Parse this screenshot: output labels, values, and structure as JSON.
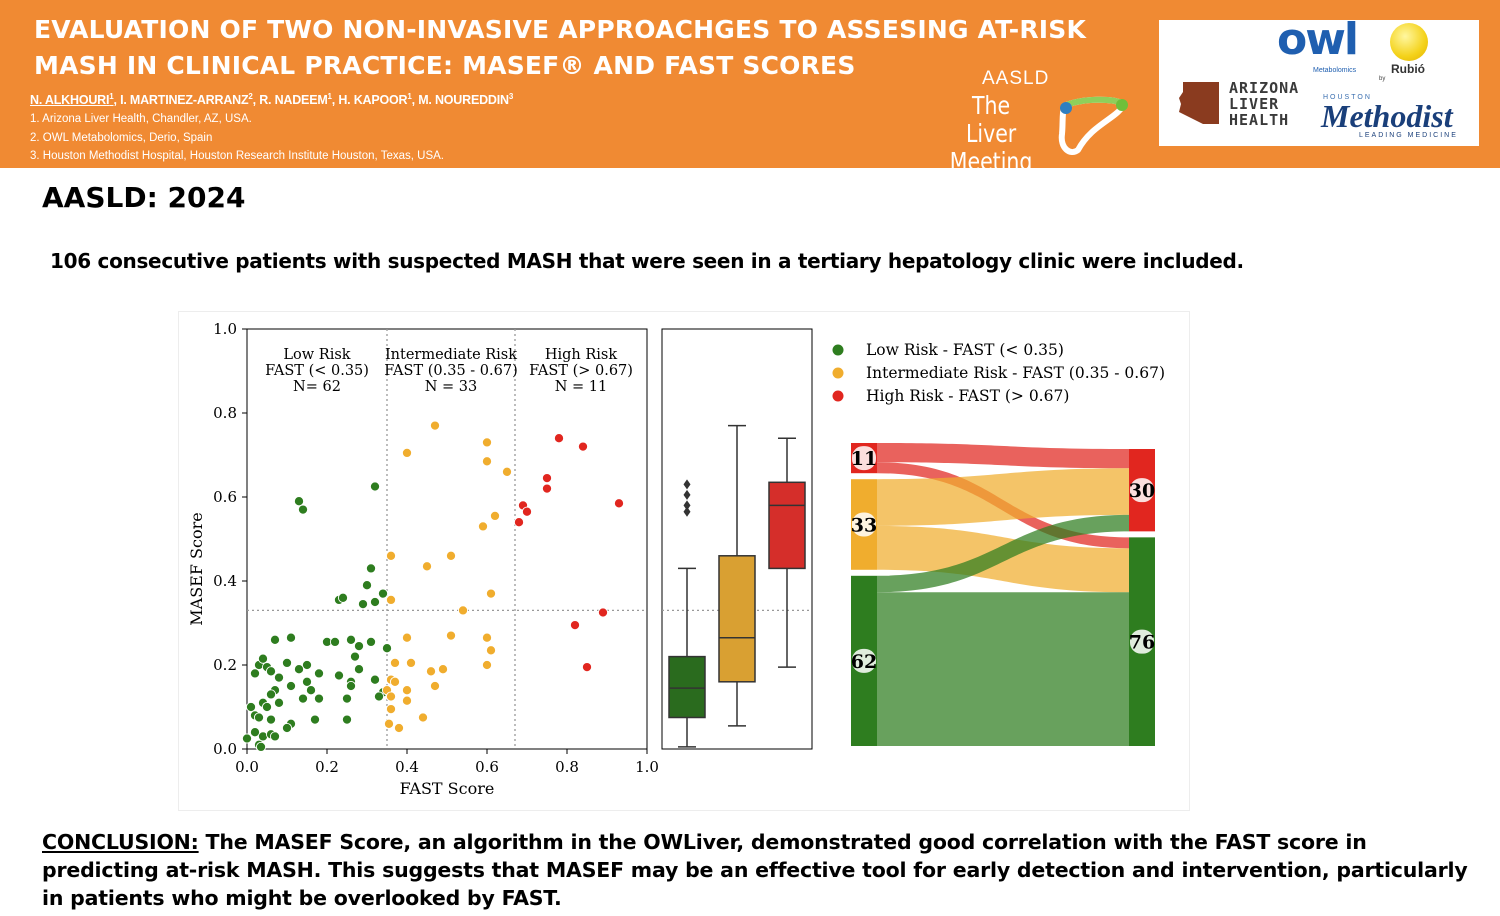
{
  "header": {
    "title": "EVALUATION OF TWO NON-INVASIVE APPROACHGES TO ASSESING AT-RISK MASH IN CLINICAL PRACTICE: MASEF® AND FAST SCORES",
    "authors": [
      {
        "name": "N. ALKHOURI",
        "sup": "1"
      },
      {
        "name": "I. MARTINEZ-ARRANZ",
        "sup": "2"
      },
      {
        "name": "R. NADEEM",
        "sup": "1"
      },
      {
        "name": "H. KAPOOR",
        "sup": "1"
      },
      {
        "name": "M. NOUREDDIN",
        "sup": "3"
      }
    ],
    "affiliations": [
      "1. Arizona Liver Health, Chandler, AZ, USA.",
      "2. OWL Metabolomics, Derio, Spain",
      "3. Houston Methodist Hospital, Houston Research Institute Houston, Texas, USA."
    ],
    "meeting": {
      "org": "AASLD",
      "name": "The Liver Meeting"
    },
    "logos": {
      "owl": "owl",
      "owl_sub": "Metabolomics",
      "owl_by": "by",
      "rubio": "Rubió",
      "arizona": [
        "ARIZONA",
        "LIVER",
        "HEALTH"
      ],
      "houston": "HOUSTON",
      "methodist": "Methodist",
      "methodist_tag": "LEADING MEDICINE"
    },
    "colors": {
      "banner": "#f08a33",
      "owl_blue": "#1f5fb0",
      "methodist_navy": "#1a3f7a"
    }
  },
  "conference_year": "AASLD: 2024",
  "intro": "106 consecutive patients with suspected MASH that were seen in a tertiary hepatology clinic were included.",
  "chart_data": [
    {
      "type": "scatter",
      "xlabel": "FAST Score",
      "ylabel": "MASEF Score",
      "xlim": [
        0,
        1
      ],
      "ylim": [
        0,
        1
      ],
      "xticks": [
        "0.0",
        "0.2",
        "0.4",
        "0.6",
        "0.8",
        "1.0"
      ],
      "yticks": [
        "0.0",
        "0.2",
        "0.4",
        "0.6",
        "0.8",
        "1.0"
      ],
      "vlines": [
        0.35,
        0.67
      ],
      "hline": 0.33,
      "colors": {
        "low": "#2e7d1f",
        "intermediate": "#f0ad2e",
        "high": "#e1261f"
      },
      "regions": [
        {
          "x": 0.175,
          "lines": [
            "Low Risk",
            "FAST (< 0.35)",
            "N= 62"
          ]
        },
        {
          "x": 0.51,
          "lines": [
            "Intermediate Risk",
            "FAST (0.35 - 0.67)",
            "N = 33"
          ]
        },
        {
          "x": 0.835,
          "lines": [
            "High Risk",
            "FAST (> 0.67)",
            "N = 11"
          ]
        }
      ],
      "series": [
        {
          "key": "low",
          "points": [
            [
              0.13,
              0.59
            ],
            [
              0.14,
              0.57
            ],
            [
              0.32,
              0.625
            ],
            [
              0.31,
              0.43
            ],
            [
              0.3,
              0.39
            ],
            [
              0.34,
              0.37
            ],
            [
              0.23,
              0.355
            ],
            [
              0.24,
              0.36
            ],
            [
              0.29,
              0.345
            ],
            [
              0.32,
              0.35
            ],
            [
              0.07,
              0.26
            ],
            [
              0.11,
              0.265
            ],
            [
              0.2,
              0.255
            ],
            [
              0.22,
              0.255
            ],
            [
              0.26,
              0.26
            ],
            [
              0.28,
              0.245
            ],
            [
              0.31,
              0.255
            ],
            [
              0.35,
              0.24
            ],
            [
              0.27,
              0.22
            ],
            [
              0.03,
              0.2
            ],
            [
              0.04,
              0.215
            ],
            [
              0.02,
              0.18
            ],
            [
              0.05,
              0.195
            ],
            [
              0.06,
              0.185
            ],
            [
              0.1,
              0.205
            ],
            [
              0.15,
              0.2
            ],
            [
              0.18,
              0.18
            ],
            [
              0.08,
              0.17
            ],
            [
              0.13,
              0.19
            ],
            [
              0.15,
              0.16
            ],
            [
              0.23,
              0.175
            ],
            [
              0.26,
              0.16
            ],
            [
              0.26,
              0.15
            ],
            [
              0.32,
              0.165
            ],
            [
              0.28,
              0.19
            ],
            [
              0.34,
              0.135
            ],
            [
              0.33,
              0.125
            ],
            [
              0.07,
              0.14
            ],
            [
              0.11,
              0.15
            ],
            [
              0.16,
              0.14
            ],
            [
              0.06,
              0.13
            ],
            [
              0.14,
              0.12
            ],
            [
              0.18,
              0.12
            ],
            [
              0.25,
              0.12
            ],
            [
              0.04,
              0.11
            ],
            [
              0.08,
              0.11
            ],
            [
              0.01,
              0.1
            ],
            [
              0.05,
              0.1
            ],
            [
              0.02,
              0.08
            ],
            [
              0.03,
              0.075
            ],
            [
              0.06,
              0.07
            ],
            [
              0.11,
              0.06
            ],
            [
              0.17,
              0.07
            ],
            [
              0.25,
              0.07
            ],
            [
              0.1,
              0.05
            ],
            [
              0.02,
              0.04
            ],
            [
              0.04,
              0.03
            ],
            [
              0.06,
              0.035
            ],
            [
              0.07,
              0.03
            ],
            [
              0.0,
              0.025
            ],
            [
              0.03,
              0.01
            ],
            [
              0.035,
              0.005
            ]
          ]
        },
        {
          "key": "intermediate",
          "points": [
            [
              0.47,
              0.77
            ],
            [
              0.6,
              0.73
            ],
            [
              0.4,
              0.705
            ],
            [
              0.6,
              0.685
            ],
            [
              0.65,
              0.66
            ],
            [
              0.62,
              0.555
            ],
            [
              0.59,
              0.53
            ],
            [
              0.36,
              0.46
            ],
            [
              0.51,
              0.46
            ],
            [
              0.45,
              0.435
            ],
            [
              0.61,
              0.37
            ],
            [
              0.36,
              0.355
            ],
            [
              0.54,
              0.33
            ],
            [
              0.4,
              0.265
            ],
            [
              0.51,
              0.27
            ],
            [
              0.6,
              0.265
            ],
            [
              0.61,
              0.235
            ],
            [
              0.37,
              0.205
            ],
            [
              0.41,
              0.205
            ],
            [
              0.6,
              0.2
            ],
            [
              0.46,
              0.185
            ],
            [
              0.49,
              0.19
            ],
            [
              0.36,
              0.165
            ],
            [
              0.37,
              0.16
            ],
            [
              0.47,
              0.15
            ],
            [
              0.4,
              0.14
            ],
            [
              0.35,
              0.14
            ],
            [
              0.36,
              0.125
            ],
            [
              0.4,
              0.115
            ],
            [
              0.36,
              0.095
            ],
            [
              0.44,
              0.075
            ],
            [
              0.355,
              0.06
            ],
            [
              0.38,
              0.05
            ]
          ]
        },
        {
          "key": "high",
          "points": [
            [
              0.78,
              0.74
            ],
            [
              0.84,
              0.72
            ],
            [
              0.75,
              0.645
            ],
            [
              0.75,
              0.62
            ],
            [
              0.69,
              0.58
            ],
            [
              0.7,
              0.565
            ],
            [
              0.68,
              0.54
            ],
            [
              0.93,
              0.585
            ],
            [
              0.82,
              0.295
            ],
            [
              0.89,
              0.325
            ],
            [
              0.85,
              0.195
            ]
          ]
        }
      ]
    },
    {
      "type": "box",
      "ylim": [
        0,
        1
      ],
      "hline": 0.33,
      "boxes": [
        {
          "key": "low",
          "whisker_low": 0.005,
          "q1": 0.075,
          "median": 0.145,
          "q3": 0.22,
          "whisker_high": 0.43,
          "outliers": [
            0.63,
            0.605,
            0.58,
            0.565
          ]
        },
        {
          "key": "intermediate",
          "whisker_low": 0.055,
          "q1": 0.16,
          "median": 0.265,
          "q3": 0.46,
          "whisker_high": 0.77,
          "outliers": []
        },
        {
          "key": "high",
          "whisker_low": 0.195,
          "q1": 0.43,
          "median": 0.58,
          "q3": 0.635,
          "whisker_high": 0.74,
          "outliers": []
        }
      ],
      "colors": {
        "low": "#2a6b1e",
        "intermediate": "#d9a032",
        "high": "#d52e2a"
      }
    },
    {
      "type": "sankey",
      "legend": [
        {
          "key": "low",
          "label": "Low Risk - FAST (< 0.35)",
          "color": "#2e7d1f"
        },
        {
          "key": "intermediate",
          "label": "Intermediate Risk - FAST (0.35 - 0.67)",
          "color": "#f0ad2e"
        },
        {
          "key": "high",
          "label": "High Risk - FAST (> 0.67)",
          "color": "#e1261f"
        }
      ],
      "left_nodes": [
        {
          "key": "high",
          "value": 11
        },
        {
          "key": "intermediate",
          "value": 33
        },
        {
          "key": "low",
          "value": 62
        }
      ],
      "right_nodes": [
        {
          "key": "high",
          "value": 30
        },
        {
          "key": "low",
          "value": 76
        }
      ],
      "flows": [
        {
          "from": "high",
          "to": "high",
          "value": 7
        },
        {
          "from": "intermediate",
          "to": "high",
          "value": 17
        },
        {
          "from": "low",
          "to": "high",
          "value": 6
        },
        {
          "from": "high",
          "to": "low",
          "value": 4
        },
        {
          "from": "intermediate",
          "to": "low",
          "value": 16
        },
        {
          "from": "low",
          "to": "low",
          "value": 56
        }
      ]
    }
  ],
  "conclusion": {
    "lead": "CONCLUSION:",
    "text": " The MASEF Score, an algorithm in the OWLiver, demonstrated good correlation with the FAST score in predicting at-risk MASH. This suggests that MASEF may be an effective tool for early detection and intervention, particularly in patients who might be overlooked by FAST."
  }
}
